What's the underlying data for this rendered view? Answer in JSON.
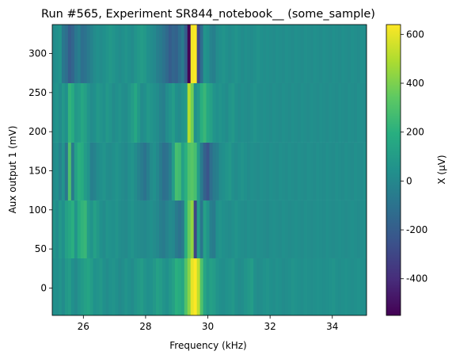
{
  "chart_data": {
    "type": "heatmap",
    "title": "Run #565, Experiment SR844_notebook__ (some_sample)",
    "xlabel": "Frequency (kHz)",
    "ylabel": "Aux output 1 (mV)",
    "colorbar_label": "X (μV)",
    "colormap": "viridis",
    "xlim": [
      25.0,
      35.1
    ],
    "ylim": [
      -35,
      337
    ],
    "clim": [
      -550,
      640
    ],
    "x_ticks": [
      "26",
      "28",
      "30",
      "32",
      "34"
    ],
    "y_ticks": [
      "0",
      "50",
      "100",
      "150",
      "200",
      "250",
      "300"
    ],
    "colorbar_ticks": [
      "-400",
      "-200",
      "0",
      "200",
      "400",
      "600"
    ],
    "row_centers": [
      0,
      75,
      150,
      225,
      300
    ],
    "row_edges": [
      -35,
      38,
      112,
      186,
      262,
      337
    ],
    "freq_range_khz": [
      25.0,
      35.1
    ],
    "column_count": 100,
    "values_uV": [
      [
        40,
        30,
        60,
        20,
        80,
        100,
        40,
        10,
        60,
        90,
        120,
        140,
        100,
        50,
        60,
        80,
        40,
        20,
        50,
        60,
        40,
        10,
        30,
        60,
        40,
        20,
        60,
        80,
        100,
        60,
        40,
        50,
        80,
        120,
        100,
        60,
        40,
        80,
        120,
        200,
        180,
        150,
        300,
        420,
        600,
        640,
        520,
        300,
        150,
        80,
        120,
        100,
        60,
        40,
        30,
        50,
        60,
        80,
        40,
        20,
        30,
        60,
        80,
        100,
        40,
        20,
        30,
        50,
        60,
        40,
        30,
        50,
        40,
        20,
        30,
        40,
        60,
        50,
        40,
        30,
        50,
        40,
        30,
        40,
        50,
        40,
        30,
        40,
        50,
        60,
        40,
        30,
        40,
        50,
        40,
        30,
        40,
        50,
        40,
        30
      ],
      [
        60,
        20,
        80,
        40,
        120,
        160,
        200,
        60,
        180,
        220,
        240,
        100,
        60,
        120,
        80,
        40,
        20,
        60,
        50,
        40,
        60,
        30,
        20,
        10,
        40,
        60,
        30,
        20,
        10,
        0,
        20,
        40,
        20,
        0,
        -40,
        -60,
        -20,
        10,
        0,
        -60,
        -100,
        -60,
        200,
        360,
        440,
        -300,
        100,
        -80,
        120,
        60,
        -40,
        -60,
        40,
        60,
        40,
        30,
        20,
        40,
        60,
        40,
        30,
        20,
        40,
        30,
        20,
        40,
        30,
        20,
        10,
        30,
        40,
        30,
        20,
        40,
        30,
        20,
        30,
        40,
        30,
        20,
        40,
        30,
        20,
        30,
        40,
        30,
        20,
        40,
        30,
        20,
        30,
        40,
        30,
        20,
        30,
        40,
        30,
        20,
        30,
        40
      ],
      [
        20,
        40,
        -20,
        60,
        -80,
        300,
        -60,
        120,
        200,
        180,
        100,
        60,
        -40,
        -20,
        20,
        40,
        60,
        30,
        20,
        40,
        60,
        40,
        20,
        0,
        40,
        60,
        20,
        -20,
        -60,
        -100,
        -40,
        20,
        40,
        0,
        -60,
        -120,
        -100,
        -40,
        100,
        280,
        260,
        120,
        200,
        300,
        320,
        280,
        100,
        -60,
        -180,
        -240,
        -120,
        -60,
        -40,
        20,
        40,
        60,
        80,
        40,
        20,
        40,
        60,
        40,
        20,
        40,
        30,
        20,
        40,
        30,
        20,
        40,
        30,
        20,
        40,
        30,
        20,
        40,
        30,
        20,
        40,
        30,
        20,
        40,
        30,
        20,
        40,
        30,
        20,
        40,
        30,
        20,
        40,
        30,
        20,
        40,
        30,
        20,
        40,
        30,
        20,
        40
      ],
      [
        40,
        60,
        20,
        80,
        40,
        220,
        180,
        80,
        100,
        160,
        120,
        60,
        20,
        40,
        80,
        60,
        40,
        80,
        60,
        20,
        40,
        60,
        30,
        20,
        60,
        100,
        160,
        80,
        20,
        40,
        80,
        60,
        40,
        20,
        -20,
        -40,
        20,
        60,
        100,
        40,
        20,
        60,
        80,
        500,
        380,
        40,
        80,
        200,
        240,
        160,
        120,
        60,
        40,
        60,
        40,
        20,
        60,
        80,
        40,
        20,
        40,
        30,
        20,
        40,
        60,
        40,
        30,
        40,
        30,
        20,
        40,
        30,
        20,
        40,
        30,
        20,
        40,
        30,
        20,
        40,
        30,
        20,
        40,
        30,
        20,
        40,
        30,
        20,
        40,
        30,
        20,
        40,
        30,
        20,
        40,
        30,
        20,
        40,
        30,
        20
      ],
      [
        20,
        40,
        60,
        -80,
        -120,
        -200,
        -160,
        -80,
        -40,
        -120,
        -100,
        -60,
        -20,
        20,
        40,
        20,
        40,
        60,
        80,
        60,
        40,
        20,
        40,
        60,
        40,
        20,
        60,
        80,
        100,
        80,
        40,
        20,
        0,
        -40,
        -60,
        -100,
        -140,
        -200,
        -160,
        -180,
        -120,
        -60,
        -200,
        -550,
        620,
        640,
        -300,
        -120,
        60,
        40,
        -20,
        -40,
        20,
        40,
        60,
        40,
        20,
        40,
        60,
        40,
        20,
        40,
        30,
        20,
        40,
        60,
        40,
        30,
        40,
        30,
        20,
        40,
        30,
        20,
        40,
        30,
        20,
        40,
        30,
        20,
        40,
        30,
        20,
        40,
        30,
        20,
        40,
        30,
        20,
        40,
        30,
        20,
        40,
        30,
        20,
        40,
        30,
        20,
        40,
        30
      ]
    ]
  }
}
